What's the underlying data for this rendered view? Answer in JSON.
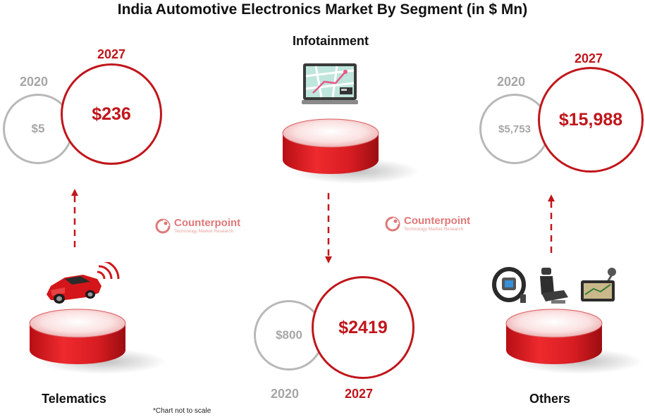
{
  "chart_data": {
    "type": "bubble",
    "title": "India Automotive Electronics Market By Segment (in $ Mn)",
    "categories": [
      "Telematics",
      "Infotainment",
      "Others"
    ],
    "series": [
      {
        "name": "2020",
        "values": [
          5,
          800,
          5753
        ]
      },
      {
        "name": "2027",
        "values": [
          236,
          2419,
          15988
        ]
      }
    ],
    "value_labels": {
      "2020": [
        "$5",
        "$800",
        "$5,753"
      ],
      "2027": [
        "$236",
        "$2419",
        "$15,988"
      ]
    },
    "footnote": "*Chart not to scale"
  },
  "watermark": {
    "name": "Counterpoint",
    "tagline": "Technology Market Research"
  },
  "colors": {
    "accent_red": "#c0161b",
    "gray": "#a6a6a6",
    "watermark": "#e07878"
  },
  "icons": [
    "car-icon",
    "infotainment-screen-icon",
    "steering-wheel-icon",
    "seat-icon",
    "navigation-device-icon"
  ]
}
